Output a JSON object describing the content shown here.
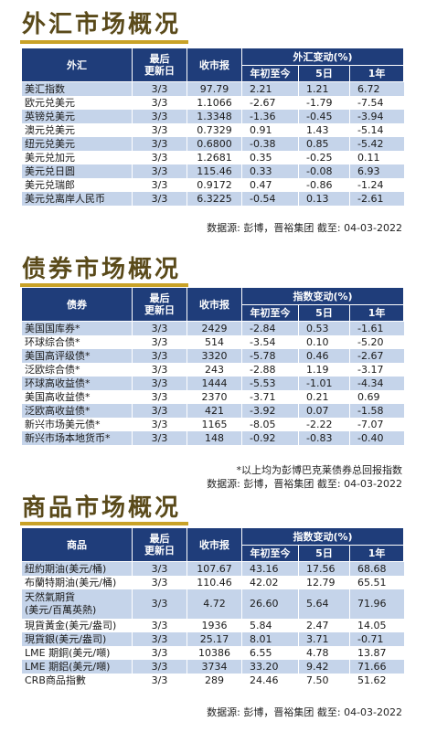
{
  "fx": {
    "title": "外汇市场概况",
    "headers": {
      "name": "外汇",
      "updated": "最后\n更新日",
      "close": "收市报",
      "group": "外汇变动(%)",
      "ytd": "年初至今",
      "d5": "5日",
      "y1": "1年"
    },
    "rows": [
      {
        "name": "美汇指数",
        "date": "3/3",
        "close": "97.79",
        "ytd": "2.21",
        "d5": "1.21",
        "y1": "6.72"
      },
      {
        "name": "欧元兑美元",
        "date": "3/3",
        "close": "1.1066",
        "ytd": "-2.67",
        "d5": "-1.79",
        "y1": "-7.54"
      },
      {
        "name": "英镑兑美元",
        "date": "3/3",
        "close": "1.3348",
        "ytd": "-1.36",
        "d5": "-0.45",
        "y1": "-3.94"
      },
      {
        "name": "澳元兑美元",
        "date": "3/3",
        "close": "0.7329",
        "ytd": "0.91",
        "d5": "1.43",
        "y1": "-5.14"
      },
      {
        "name": "纽元兑美元",
        "date": "3/3",
        "close": "0.6800",
        "ytd": "-0.38",
        "d5": "0.85",
        "y1": "-5.42"
      },
      {
        "name": "美元兑加元",
        "date": "3/3",
        "close": "1.2681",
        "ytd": "0.35",
        "d5": "-0.25",
        "y1": "0.11"
      },
      {
        "name": "美元兑日圆",
        "date": "3/3",
        "close": "115.46",
        "ytd": "0.33",
        "d5": "-0.08",
        "y1": "6.93"
      },
      {
        "name": "美元兑瑞郎",
        "date": "3/3",
        "close": "0.9172",
        "ytd": "0.47",
        "d5": "-0.86",
        "y1": "-1.24"
      },
      {
        "name": "美元兑离岸人民币",
        "date": "3/3",
        "close": "6.3225",
        "ytd": "-0.54",
        "d5": "0.13",
        "y1": "-2.61"
      }
    ],
    "source": "数据源: 彭博，晋裕集团 截至: 04-03-2022"
  },
  "bond": {
    "title": "债券市场概况",
    "headers": {
      "name": "债券",
      "updated": "最后\n更新日",
      "close": "收市报",
      "group": "指数变动(%)",
      "ytd": "年初至今",
      "d5": "5日",
      "y1": "1年"
    },
    "rows": [
      {
        "name": "美国国库券*",
        "date": "3/3",
        "close": "2429",
        "ytd": "-2.84",
        "d5": "0.53",
        "y1": "-1.61"
      },
      {
        "name": "环球综合债*",
        "date": "3/3",
        "close": "514",
        "ytd": "-3.54",
        "d5": "0.10",
        "y1": "-5.20"
      },
      {
        "name": "美国高评级债*",
        "date": "3/3",
        "close": "3320",
        "ytd": "-5.78",
        "d5": "0.46",
        "y1": "-2.67"
      },
      {
        "name": "泛欧综合债*",
        "date": "3/3",
        "close": "243",
        "ytd": "-2.88",
        "d5": "1.19",
        "y1": "-3.17"
      },
      {
        "name": "环球高收益债*",
        "date": "3/3",
        "close": "1444",
        "ytd": "-5.53",
        "d5": "-1.01",
        "y1": "-4.34"
      },
      {
        "name": "美国高收益债*",
        "date": "3/3",
        "close": "2370",
        "ytd": "-3.71",
        "d5": "0.21",
        "y1": "0.69"
      },
      {
        "name": "泛欧高收益债*",
        "date": "3/3",
        "close": "421",
        "ytd": "-3.92",
        "d5": "0.07",
        "y1": "-1.58"
      },
      {
        "name": "新兴市场美元债*",
        "date": "3/3",
        "close": "1165",
        "ytd": "-8.05",
        "d5": "-2.22",
        "y1": "-7.07"
      },
      {
        "name": "新兴市场本地货币*",
        "date": "3/3",
        "close": "148",
        "ytd": "-0.92",
        "d5": "-0.83",
        "y1": "-0.40"
      }
    ],
    "note": "*以上均为彭博巴克莱债券总回报指数",
    "source": "数据源: 彭博，晋裕集团 截至: 04-03-2022"
  },
  "commodity": {
    "title": "商品市场概况",
    "headers": {
      "name": "商品",
      "updated": "最后\n更新日",
      "close": "收市报",
      "group": "指数变动(%)",
      "ytd": "年初至今",
      "d5": "5日",
      "y1": "1年"
    },
    "rows": [
      {
        "name": "紐約期油(美元/桶)",
        "date": "3/3",
        "close": "107.67",
        "ytd": "43.16",
        "d5": "17.56",
        "y1": "68.68"
      },
      {
        "name": "布蘭特期油(美元/桶)",
        "date": "3/3",
        "close": "110.46",
        "ytd": "42.02",
        "d5": "12.79",
        "y1": "65.51"
      },
      {
        "name": "天然氣期貨\n(美元/百萬英熱)",
        "date": "3/3",
        "close": "4.72",
        "ytd": "26.60",
        "d5": "5.64",
        "y1": "71.96",
        "tall": true
      },
      {
        "name": "現貨黃金(美元/盎司)",
        "date": "3/3",
        "close": "1936",
        "ytd": "5.84",
        "d5": "2.47",
        "y1": "14.05"
      },
      {
        "name": "現貨銀(美元/盎司)",
        "date": "3/3",
        "close": "25.17",
        "ytd": "8.01",
        "d5": "3.71",
        "y1": "-0.71"
      },
      {
        "name": "LME 期銅(美元/噸)",
        "date": "3/3",
        "close": "10386",
        "ytd": "6.55",
        "d5": "4.78",
        "y1": "13.87"
      },
      {
        "name": "LME 期鋁(美元/噸)",
        "date": "3/3",
        "close": "3734",
        "ytd": "33.20",
        "d5": "9.42",
        "y1": "71.66"
      },
      {
        "name": "CRB商品指數",
        "date": "3/3",
        "close": "289",
        "ytd": "24.46",
        "d5": "7.50",
        "y1": "51.62"
      }
    ],
    "source": "数据源: 彭博，晋裕集团 截至: 04-03-2022"
  }
}
